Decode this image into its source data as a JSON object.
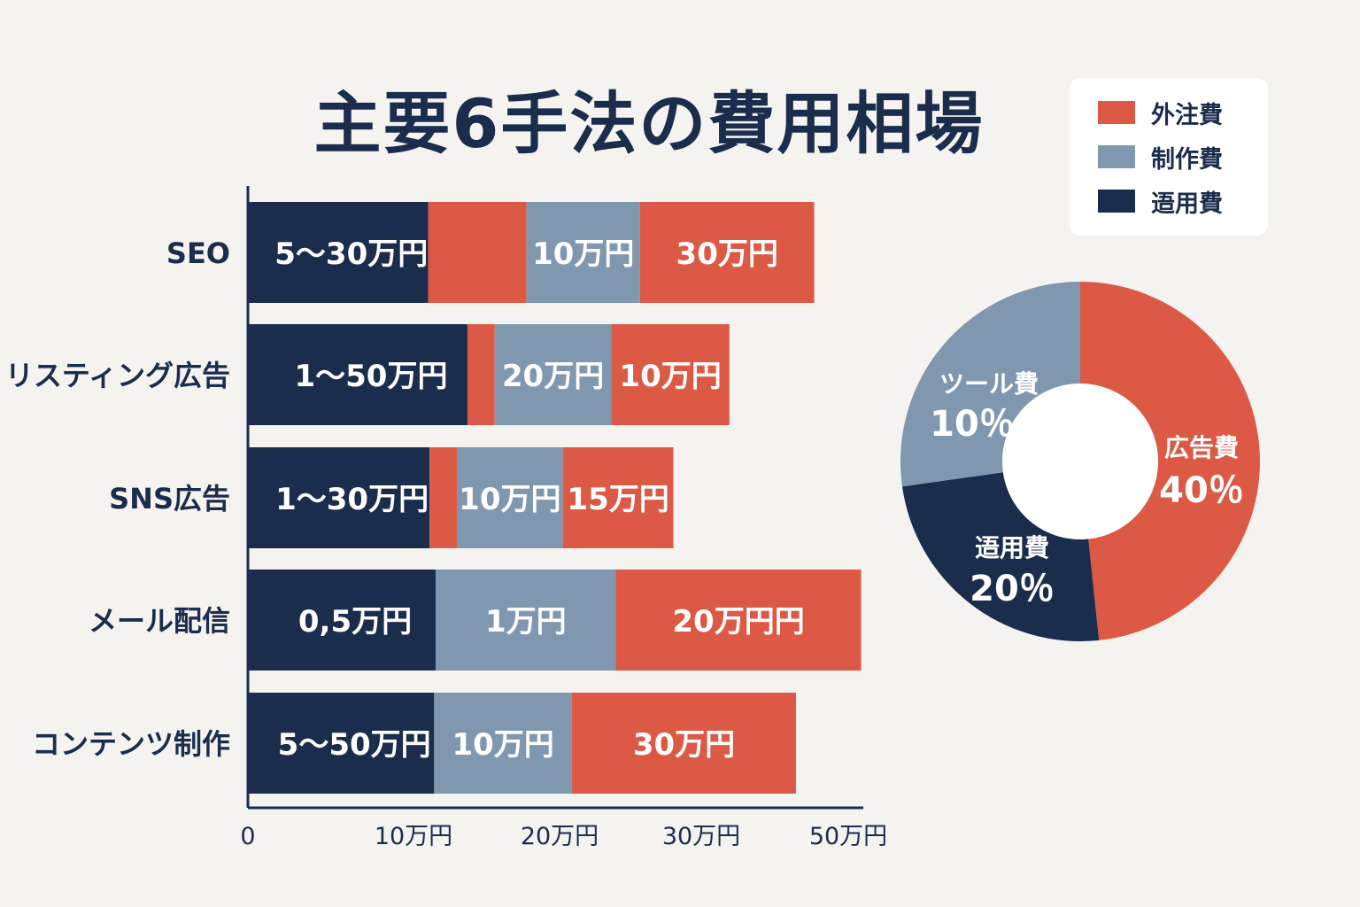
{
  "title": "主要6手法の費用相場",
  "colors": {
    "outsourcing": "#dc5a45",
    "production": "#8097b0",
    "operation": "#1b2d4d",
    "background": "#f5f3ef"
  },
  "legend": [
    {
      "label": "外注費",
      "color": "#dc5a45"
    },
    {
      "label": "制作費",
      "color": "#8097b0"
    },
    {
      "label": "逜用費",
      "color": "#1b2d4d"
    }
  ],
  "chart_data": [
    {
      "type": "bar",
      "orientation": "horizontal",
      "stacked": true,
      "xlim": [
        0,
        50
      ],
      "xticks": [
        {
          "value": 0,
          "label": "0"
        },
        {
          "value": 10,
          "label": "10万円"
        },
        {
          "value": 20,
          "label": "20万円"
        },
        {
          "value": 30,
          "label": "30万円"
        },
        {
          "value": 50,
          "label": "50万円"
        }
      ],
      "categories": [
        "SEO",
        "リスティング広告",
        "SNS広告",
        "メール配信",
        "コンテンツ制作"
      ],
      "bars": [
        {
          "category": "SEO",
          "segments": [
            {
              "kind": "operation",
              "start": 0,
              "end": 11.9,
              "label": "5～30万円"
            },
            {
              "kind": "outsourcing",
              "start": 11.9,
              "end": 18.4
            },
            {
              "kind": "production",
              "start": 18.4,
              "end": 25.9,
              "label": "10万円"
            },
            {
              "kind": "outsourcing",
              "start": 25.9,
              "end": 37.4,
              "label": "30万円"
            }
          ]
        },
        {
          "category": "リスティング広告",
          "segments": [
            {
              "kind": "operation",
              "start": 0,
              "end": 14.5,
              "label": "1～50万円"
            },
            {
              "kind": "outsourcing",
              "start": 14.5,
              "end": 16.3
            },
            {
              "kind": "production",
              "start": 16.3,
              "end": 24.0,
              "label": "20万円"
            },
            {
              "kind": "outsourcing",
              "start": 24.0,
              "end": 31.8,
              "label": "10万円"
            }
          ]
        },
        {
          "category": "SNS広告",
          "segments": [
            {
              "kind": "operation",
              "start": 0,
              "end": 12.0,
              "label": "1～30万円"
            },
            {
              "kind": "outsourcing",
              "start": 12.0,
              "end": 13.8
            },
            {
              "kind": "production",
              "start": 13.8,
              "end": 20.8,
              "label": "10万円"
            },
            {
              "kind": "outsourcing",
              "start": 20.8,
              "end": 28.1,
              "label": "15万円"
            }
          ]
        },
        {
          "category": "メール配信",
          "segments": [
            {
              "kind": "operation",
              "start": 0,
              "end": 12.4,
              "label": "0,5万円"
            },
            {
              "kind": "production",
              "start": 12.4,
              "end": 24.3,
              "label": "1万円"
            },
            {
              "kind": "outsourcing",
              "start": 24.3,
              "end": 40.5,
              "label": "20万円円"
            }
          ]
        },
        {
          "category": "コンテンツ制作",
          "segments": [
            {
              "kind": "operation",
              "start": 0,
              "end": 12.3,
              "label": "5～50万円"
            },
            {
              "kind": "production",
              "start": 12.3,
              "end": 21.4,
              "label": "10万円"
            },
            {
              "kind": "outsourcing",
              "start": 21.4,
              "end": 36.2,
              "label": "30万円"
            }
          ]
        }
      ]
    },
    {
      "type": "pie",
      "donut": true,
      "slices": [
        {
          "label": "広告費",
          "value": 40,
          "value_label": "40％",
          "color": "#dc5a45"
        },
        {
          "label": "逜用費",
          "value": 20,
          "value_label": "20％",
          "color": "#1b2d4d"
        },
        {
          "label": "ツール費",
          "value": 10,
          "value_label": "10％",
          "color": "#8097b0"
        }
      ]
    }
  ]
}
